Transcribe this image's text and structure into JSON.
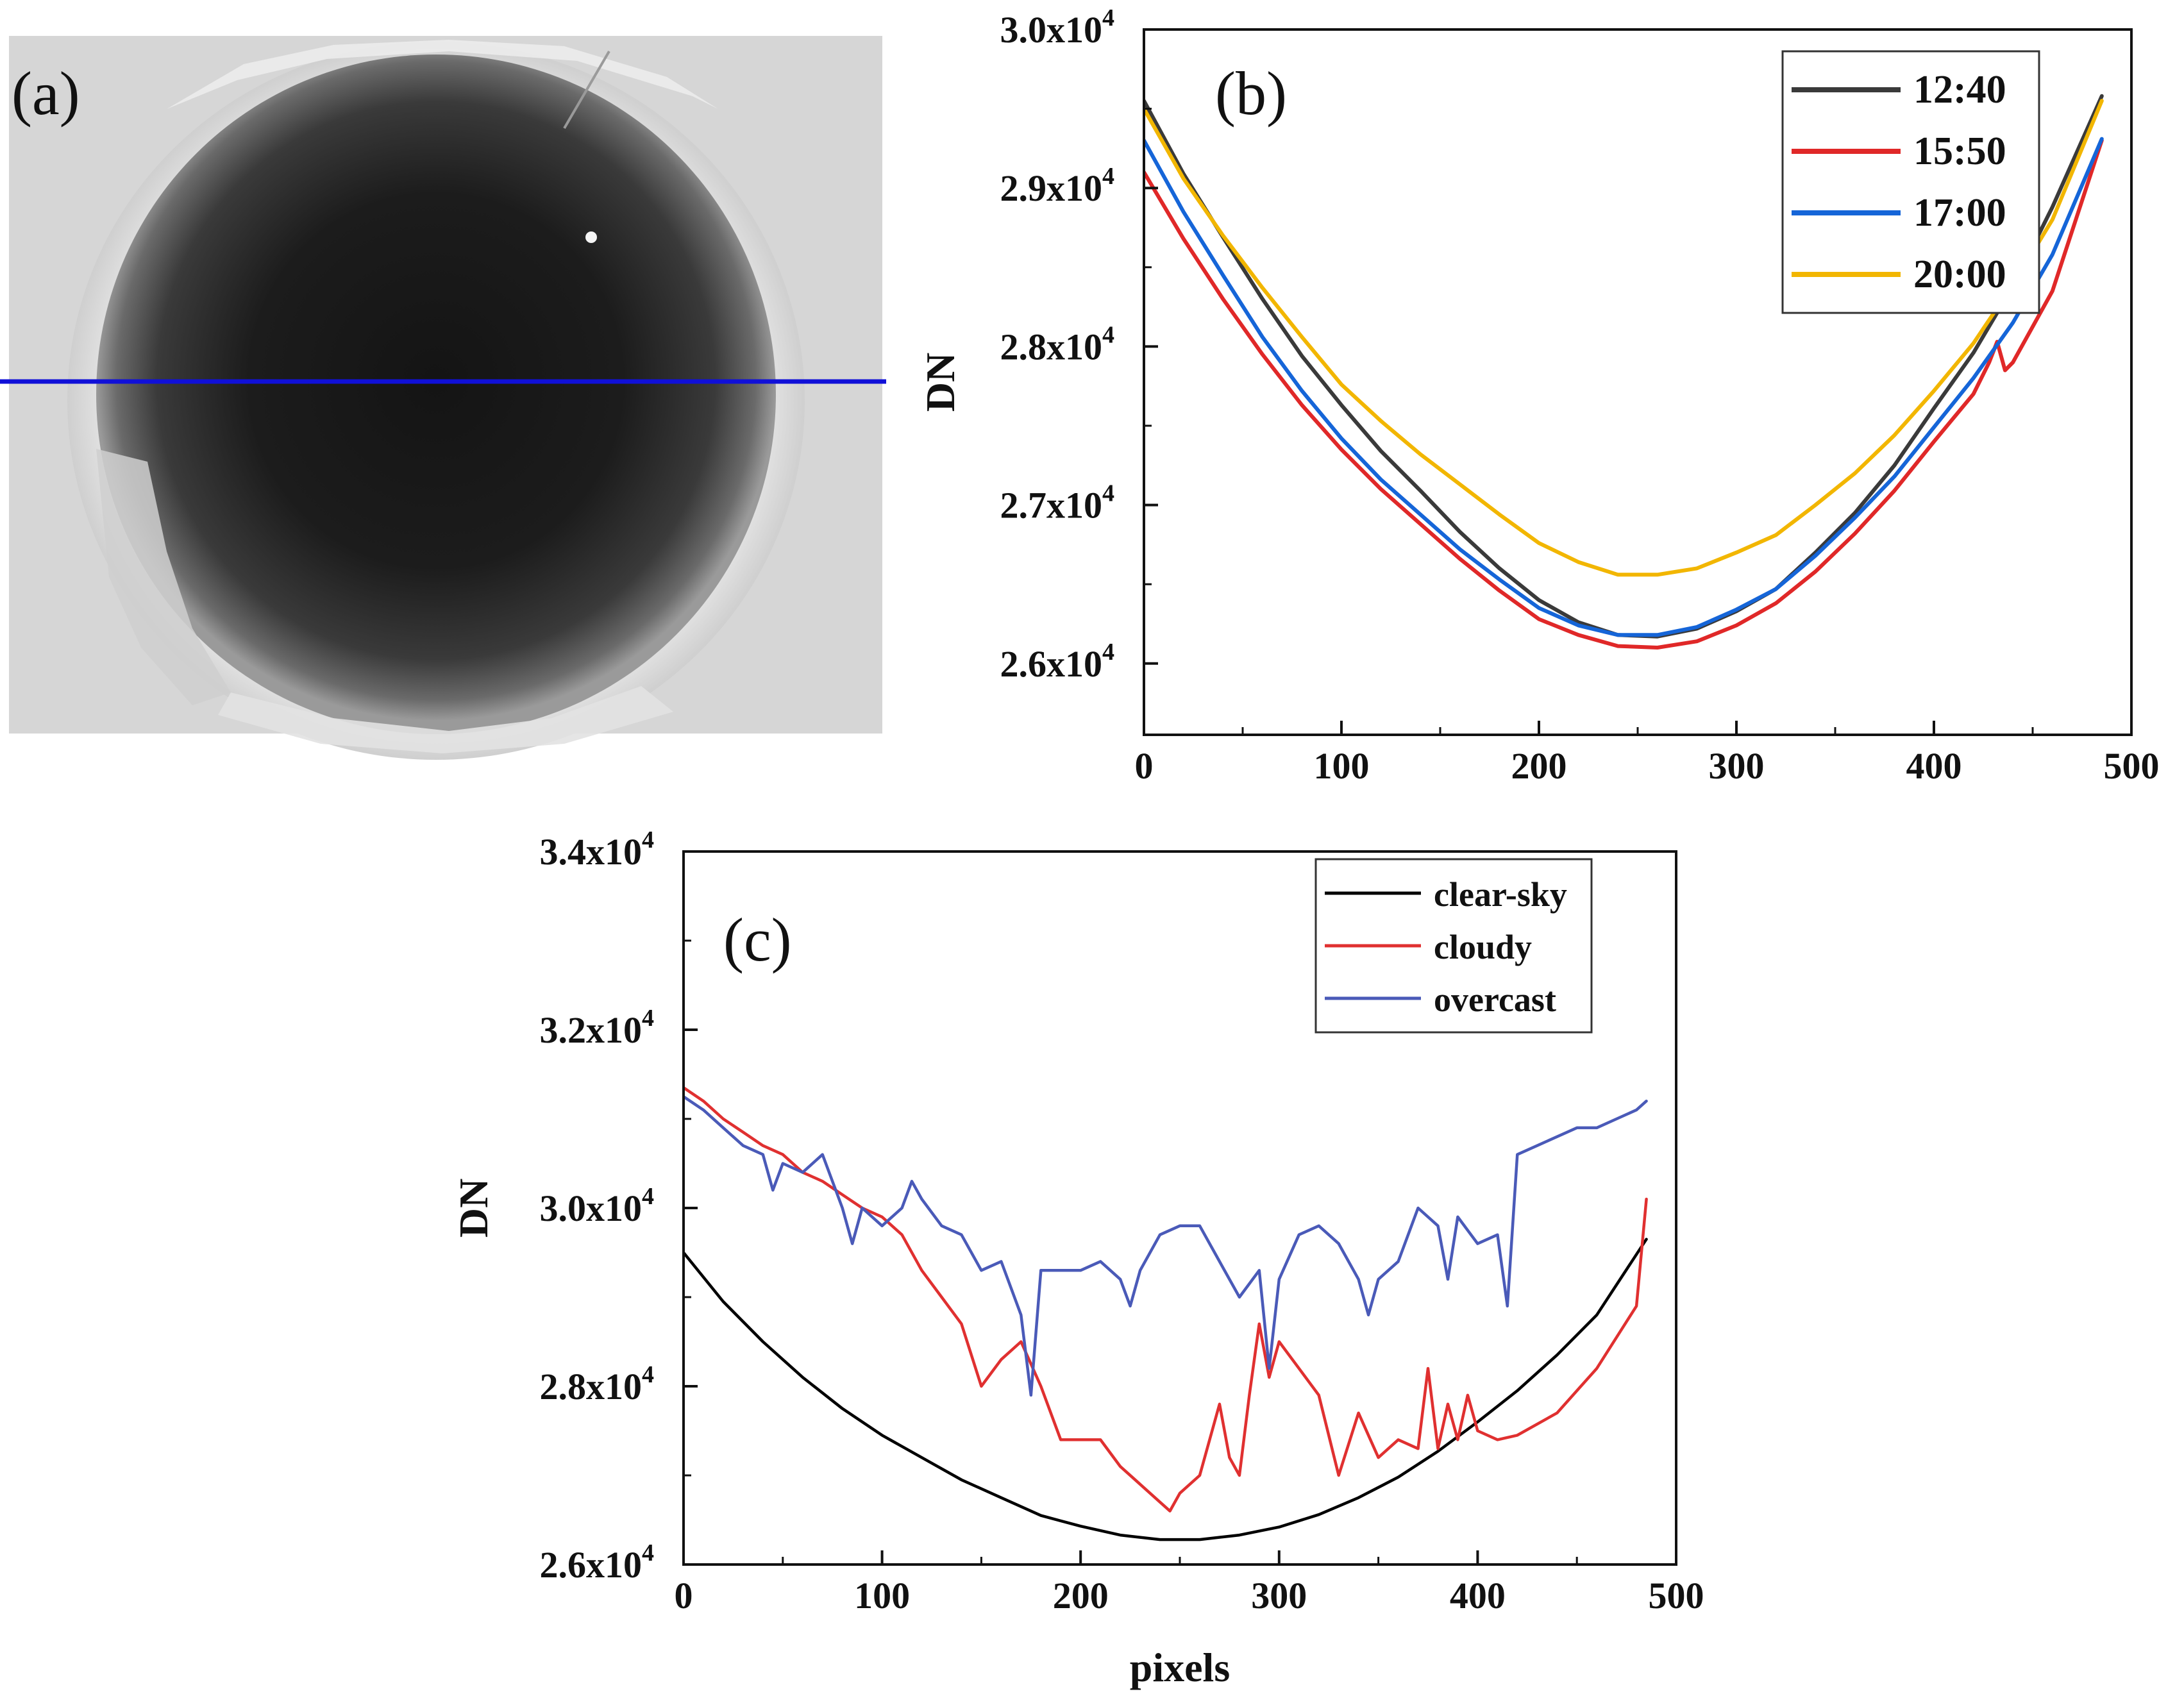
{
  "figure": {
    "panel_a_label": "(a)",
    "panel_b_label": "(b)",
    "panel_c_label": "(c)"
  },
  "colors": {
    "axis": "#111111",
    "profile_line": "#1010d8",
    "image_bg": "#d9d9d9"
  },
  "chart_data": [
    {
      "id": "b",
      "type": "line",
      "title": "",
      "xlabel": "",
      "ylabel": "DN",
      "xlim": [
        0,
        500
      ],
      "ylim": [
        25550,
        30000
      ],
      "xticks": [
        {
          "value": 0,
          "label": "0"
        },
        {
          "value": 100,
          "label": "100"
        },
        {
          "value": 200,
          "label": "200"
        },
        {
          "value": 300,
          "label": "300"
        },
        {
          "value": 400,
          "label": "400"
        },
        {
          "value": 500,
          "label": "500"
        }
      ],
      "yticks": [
        {
          "value": 26000,
          "base": "2.6x10",
          "exp": "4"
        },
        {
          "value": 27000,
          "base": "2.7x10",
          "exp": "4"
        },
        {
          "value": 28000,
          "base": "2.8x10",
          "exp": "4"
        },
        {
          "value": 29000,
          "base": "2.9x10",
          "exp": "4"
        },
        {
          "value": 30000,
          "base": "3.0x10",
          "exp": "4"
        }
      ],
      "legend_position": "top-right",
      "series": [
        {
          "name": "12:40",
          "color": "#3a3a3a",
          "x": [
            0,
            20,
            40,
            60,
            80,
            100,
            120,
            140,
            160,
            180,
            200,
            220,
            240,
            260,
            280,
            300,
            320,
            340,
            360,
            380,
            400,
            420,
            440,
            460,
            485
          ],
          "y": [
            29550,
            29090,
            28690,
            28300,
            27940,
            27630,
            27340,
            27090,
            26830,
            26600,
            26400,
            26260,
            26180,
            26170,
            26220,
            26330,
            26470,
            26700,
            26950,
            27250,
            27610,
            27960,
            28380,
            28880,
            29580
          ]
        },
        {
          "name": "15:50",
          "color": "#e02828",
          "x": [
            0,
            20,
            40,
            60,
            80,
            100,
            120,
            140,
            160,
            180,
            200,
            220,
            240,
            260,
            280,
            300,
            320,
            340,
            360,
            380,
            400,
            420,
            428,
            432,
            436,
            440,
            460,
            485
          ],
          "y": [
            29100,
            28680,
            28300,
            27950,
            27630,
            27350,
            27100,
            26880,
            26660,
            26460,
            26280,
            26180,
            26110,
            26100,
            26140,
            26240,
            26380,
            26580,
            26820,
            27090,
            27400,
            27700,
            27900,
            28030,
            27850,
            27900,
            28350,
            29300
          ]
        },
        {
          "name": "17:00",
          "color": "#1565d8",
          "x": [
            0,
            20,
            40,
            60,
            80,
            100,
            120,
            140,
            160,
            180,
            200,
            220,
            240,
            260,
            280,
            300,
            320,
            340,
            360,
            380,
            400,
            420,
            440,
            460,
            485
          ],
          "y": [
            29300,
            28850,
            28450,
            28060,
            27720,
            27420,
            27160,
            26940,
            26720,
            26530,
            26350,
            26240,
            26180,
            26180,
            26230,
            26340,
            26470,
            26680,
            26920,
            27180,
            27490,
            27800,
            28150,
            28580,
            29310
          ]
        },
        {
          "name": "20:00",
          "color": "#f2b600",
          "x": [
            0,
            20,
            40,
            60,
            80,
            100,
            120,
            140,
            160,
            180,
            200,
            220,
            240,
            260,
            280,
            300,
            320,
            340,
            360,
            380,
            400,
            420,
            440,
            460,
            485
          ],
          "y": [
            29500,
            29060,
            28700,
            28370,
            28060,
            27760,
            27530,
            27320,
            27130,
            26940,
            26760,
            26640,
            26560,
            26560,
            26600,
            26700,
            26810,
            27000,
            27200,
            27440,
            27720,
            28020,
            28390,
            28800,
            29550
          ]
        }
      ]
    },
    {
      "id": "c",
      "type": "line",
      "title": "",
      "xlabel": "pixels",
      "ylabel": "DN",
      "xlim": [
        0,
        500
      ],
      "ylim": [
        26000,
        34000
      ],
      "xticks": [
        {
          "value": 0,
          "label": "0"
        },
        {
          "value": 100,
          "label": "100"
        },
        {
          "value": 200,
          "label": "200"
        },
        {
          "value": 300,
          "label": "300"
        },
        {
          "value": 400,
          "label": "400"
        },
        {
          "value": 500,
          "label": "500"
        }
      ],
      "yticks": [
        {
          "value": 26000,
          "base": "2.6x10",
          "exp": "4"
        },
        {
          "value": 28000,
          "base": "2.8x10",
          "exp": "4"
        },
        {
          "value": 30000,
          "base": "3.0x10",
          "exp": "4"
        },
        {
          "value": 32000,
          "base": "3.2x10",
          "exp": "4"
        },
        {
          "value": 34000,
          "base": "3.4x10",
          "exp": "4"
        }
      ],
      "legend_position": "top-right",
      "series": [
        {
          "name": "clear-sky",
          "color": "#000000",
          "x": [
            0,
            20,
            40,
            60,
            80,
            100,
            120,
            140,
            160,
            180,
            200,
            220,
            240,
            260,
            280,
            300,
            320,
            340,
            360,
            380,
            400,
            420,
            440,
            460,
            485
          ],
          "y": [
            29500,
            28950,
            28500,
            28100,
            27750,
            27450,
            27200,
            26950,
            26750,
            26550,
            26430,
            26330,
            26280,
            26280,
            26330,
            26420,
            26560,
            26750,
            26980,
            27270,
            27600,
            27950,
            28350,
            28800,
            29650
          ]
        },
        {
          "name": "cloudy",
          "color": "#e03030",
          "x": [
            0,
            10,
            20,
            30,
            40,
            50,
            60,
            70,
            80,
            90,
            100,
            110,
            120,
            130,
            140,
            150,
            160,
            170,
            180,
            190,
            200,
            210,
            220,
            230,
            240,
            245,
            250,
            260,
            270,
            275,
            280,
            285,
            290,
            295,
            300,
            310,
            320,
            330,
            340,
            350,
            360,
            370,
            375,
            380,
            385,
            390,
            395,
            400,
            410,
            420,
            440,
            460,
            480,
            485
          ],
          "y": [
            31350,
            31200,
            31000,
            30850,
            30700,
            30600,
            30400,
            30300,
            30150,
            30000,
            29900,
            29700,
            29300,
            29000,
            28700,
            28000,
            28300,
            28500,
            28000,
            27400,
            27400,
            27400,
            27100,
            26900,
            26700,
            26600,
            26800,
            27000,
            27800,
            27200,
            27000,
            27900,
            28700,
            28100,
            28500,
            28200,
            27900,
            27000,
            27700,
            27200,
            27400,
            27300,
            28200,
            27300,
            27800,
            27400,
            27900,
            27500,
            27400,
            27450,
            27700,
            28200,
            28900,
            30100
          ]
        },
        {
          "name": "overcast",
          "color": "#4a5ab8",
          "x": [
            0,
            10,
            20,
            30,
            40,
            45,
            50,
            60,
            70,
            80,
            85,
            90,
            100,
            110,
            115,
            120,
            130,
            140,
            150,
            160,
            170,
            175,
            180,
            190,
            200,
            210,
            220,
            225,
            230,
            240,
            250,
            260,
            270,
            280,
            290,
            295,
            300,
            310,
            320,
            330,
            340,
            345,
            350,
            360,
            370,
            380,
            385,
            390,
            400,
            410,
            415,
            420,
            430,
            440,
            450,
            460,
            470,
            480,
            485
          ],
          "y": [
            31250,
            31100,
            30900,
            30700,
            30600,
            30200,
            30500,
            30400,
            30600,
            30000,
            29600,
            30000,
            29800,
            30000,
            30300,
            30100,
            29800,
            29700,
            29300,
            29400,
            28800,
            27900,
            29300,
            29300,
            29300,
            29400,
            29200,
            28900,
            29300,
            29700,
            29800,
            29800,
            29400,
            29000,
            29300,
            28200,
            29200,
            29700,
            29800,
            29600,
            29200,
            28800,
            29200,
            29400,
            30000,
            29800,
            29200,
            29900,
            29600,
            29700,
            28900,
            30600,
            30700,
            30800,
            30900,
            30900,
            31000,
            31100,
            31200
          ]
        }
      ]
    }
  ]
}
